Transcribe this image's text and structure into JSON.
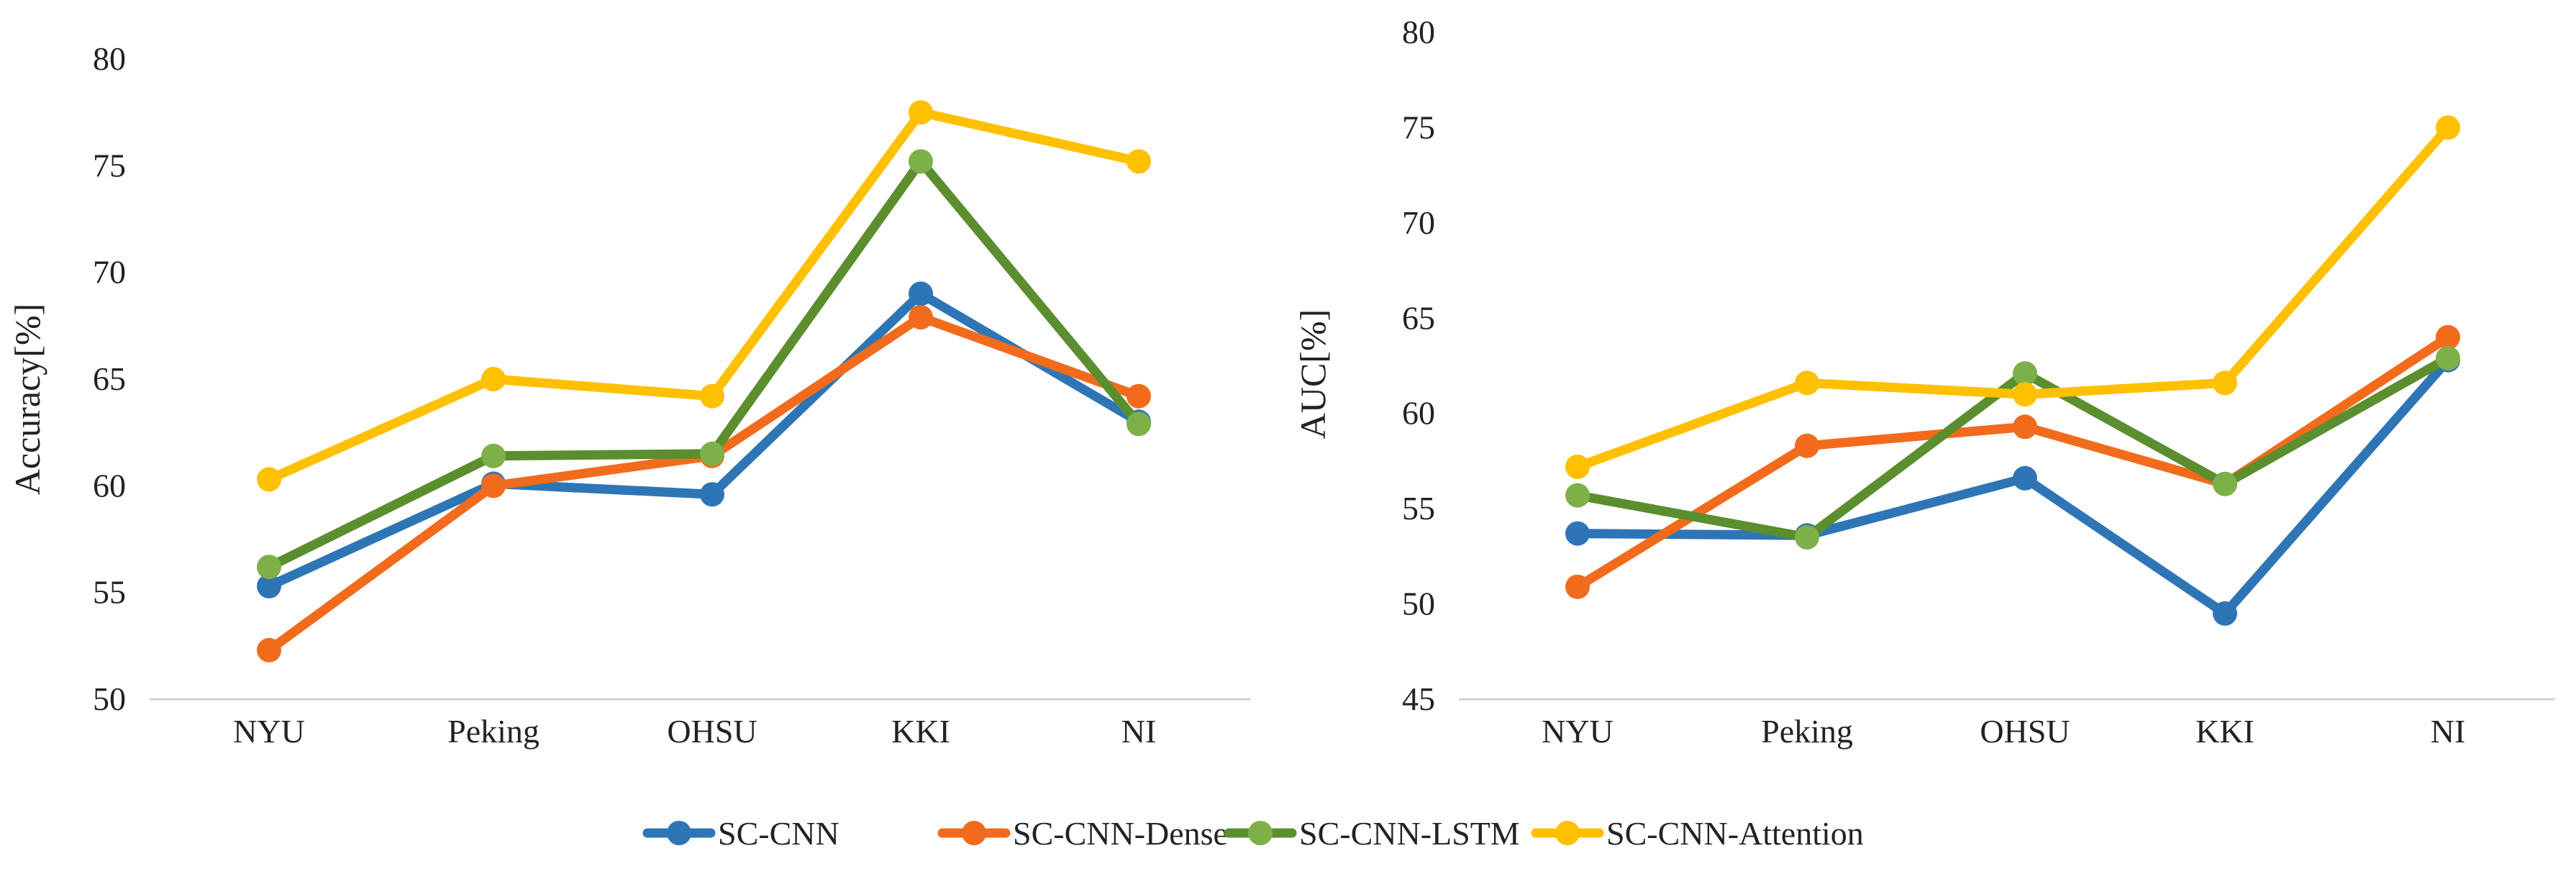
{
  "chart_data": [
    {
      "type": "line",
      "title": "",
      "xlabel": "",
      "ylabel": "Accuracy[%]",
      "ylim": [
        50,
        80
      ],
      "ytick_step": 5,
      "grid": false,
      "categories": [
        "NYU",
        "Peking",
        "OHSU",
        "KKI",
        "NI"
      ],
      "series": [
        {
          "name": "SC-CNN",
          "color": "#2E75B6",
          "values": [
            55.3,
            60.1,
            59.6,
            69.0,
            63.0
          ]
        },
        {
          "name": "SC-CNN-Dense",
          "color": "#F26B1D",
          "values": [
            52.3,
            60.0,
            61.4,
            67.9,
            64.2
          ]
        },
        {
          "name": "SC-CNN-LSTM",
          "color": "#5B8E2E",
          "marker_color": "#7EB04A",
          "values": [
            56.2,
            61.4,
            61.5,
            75.2,
            62.9
          ]
        },
        {
          "name": "SC-CNN-Attention",
          "color": "#FFC000",
          "values": [
            60.3,
            65.0,
            64.2,
            77.5,
            75.2
          ]
        }
      ]
    },
    {
      "type": "line",
      "title": "",
      "xlabel": "",
      "ylabel": "AUC[%]",
      "ylim": [
        45,
        80
      ],
      "ytick_step": 5,
      "grid": false,
      "categories": [
        "NYU",
        "Peking",
        "OHSU",
        "KKI",
        "NI"
      ],
      "series": [
        {
          "name": "SC-CNN",
          "color": "#2E75B6",
          "values": [
            53.7,
            53.6,
            56.6,
            49.5,
            62.8
          ]
        },
        {
          "name": "SC-CNN-Dense",
          "color": "#F26B1D",
          "values": [
            50.9,
            58.3,
            59.3,
            56.3,
            64.0
          ]
        },
        {
          "name": "SC-CNN-LSTM",
          "color": "#5B8E2E",
          "marker_color": "#7EB04A",
          "values": [
            55.7,
            53.5,
            62.1,
            56.3,
            62.9
          ]
        },
        {
          "name": "SC-CNN-Attention",
          "color": "#FFC000",
          "values": [
            57.2,
            61.6,
            61.0,
            61.6,
            75.0
          ]
        }
      ]
    }
  ],
  "legend": {
    "position": "bottom-center",
    "items": [
      "SC-CNN",
      "SC-CNN-Dense",
      "SC-CNN-LSTM",
      "SC-CNN-Attention"
    ]
  }
}
